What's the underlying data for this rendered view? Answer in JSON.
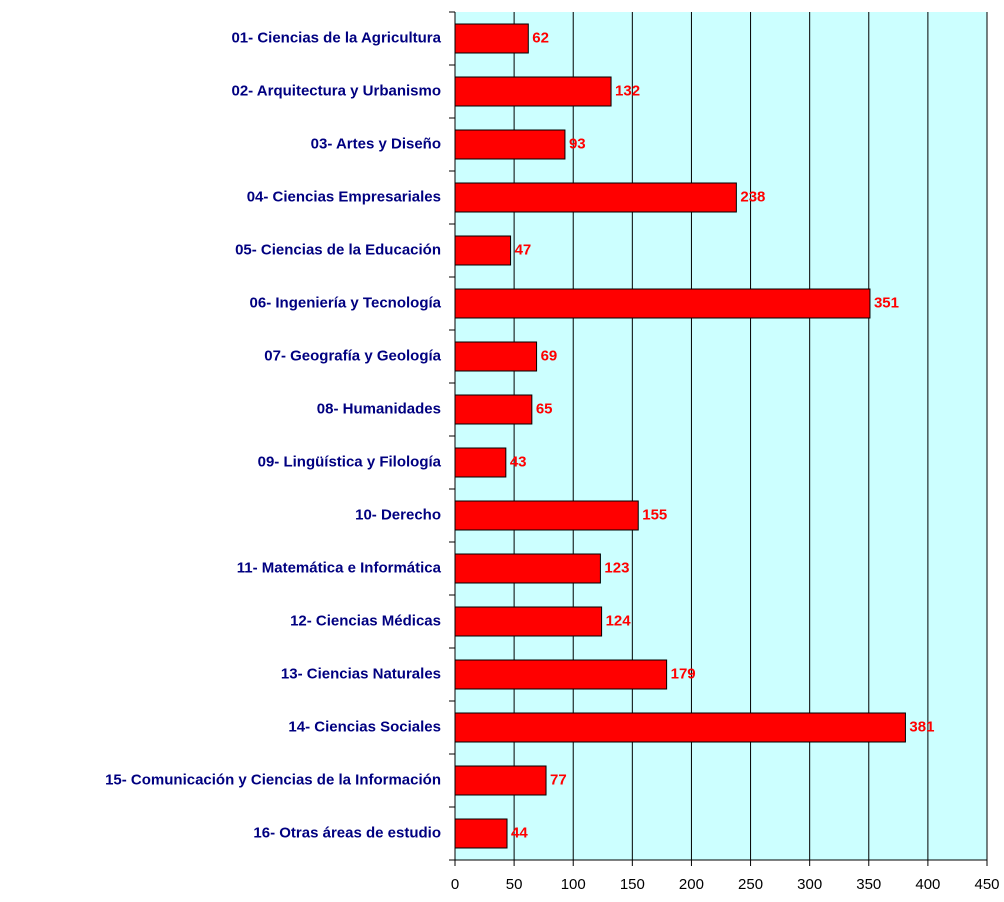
{
  "chart_data": {
    "type": "bar",
    "orientation": "horizontal",
    "categories": [
      "01- Ciencias de la Agricultura",
      "02- Arquitectura y Urbanismo",
      "03- Artes y Diseño",
      "04- Ciencias Empresariales",
      "05- Ciencias de la Educación",
      "06- Ingeniería y Tecnología",
      "07- Geografía y Geología",
      "08- Humanidades",
      "09- Lingüística y Filología",
      "10- Derecho",
      "11- Matemática e Informática",
      "12- Ciencias Médicas",
      "13- Ciencias Naturales",
      "14- Ciencias Sociales",
      "15- Comunicación y Ciencias de la Información",
      "16- Otras áreas de estudio"
    ],
    "values": [
      62,
      132,
      93,
      238,
      47,
      351,
      69,
      65,
      43,
      155,
      123,
      124,
      179,
      381,
      77,
      44
    ],
    "color": "#ff0000",
    "xlim": [
      0,
      450
    ],
    "xticks": [
      0,
      50,
      100,
      150,
      200,
      250,
      300,
      350,
      400,
      450
    ],
    "grid": true,
    "background": "#ccffff"
  }
}
